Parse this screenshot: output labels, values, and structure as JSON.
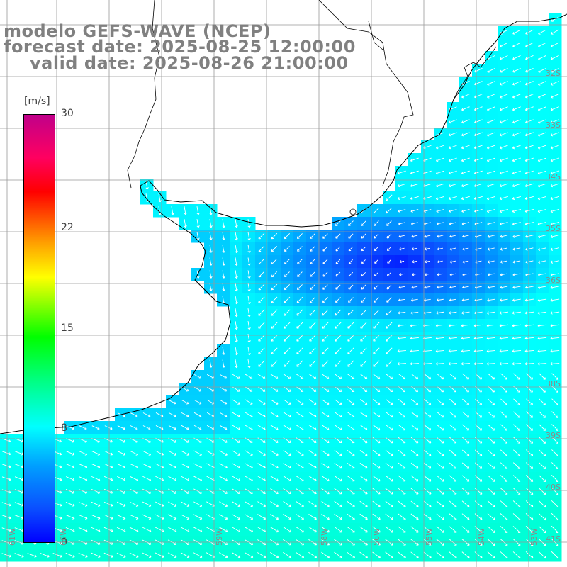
{
  "title": {
    "model": "modelo GEFS-WAVE (NCEP)",
    "forecast": "forecast date: 2025-08-25 12:00:00",
    "valid": "valid date: 2025-08-26 21:00:00"
  },
  "colorbar": {
    "unit": "[m/s]",
    "min": 0,
    "max": 30,
    "ticks": [
      {
        "label": "30",
        "value": 30
      },
      {
        "label": "22",
        "value": 22
      },
      {
        "label": "15",
        "value": 15
      },
      {
        "label": "8",
        "value": 8
      },
      {
        "label": "0",
        "value": 0
      }
    ]
  },
  "lat_labels": [
    "32S",
    "33S",
    "34S",
    "35S",
    "36S",
    "38S",
    "39S",
    "40S",
    "41S"
  ],
  "lon_labels": [
    "61W",
    "60W",
    "59W",
    "58W",
    "56W",
    "55W",
    "54W",
    "53W"
  ],
  "colors": {
    "land": "#ffffff",
    "coastline": "#000000",
    "grid": "#999999",
    "arrows": "#ffffff",
    "title": "#808080"
  }
}
